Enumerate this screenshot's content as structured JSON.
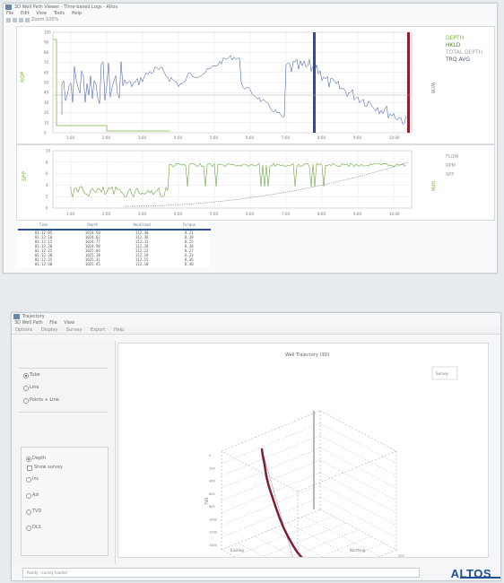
{
  "top_window": {
    "title": "3D Well Path Viewer - Time-based Logs - Altos",
    "menu": [
      "File",
      "Edit",
      "View",
      "Tools",
      "Help"
    ],
    "toolbar_label": "Zoom 100%",
    "upper_chart": {
      "y_ticks": [
        "100",
        "90",
        "80",
        "70",
        "60",
        "50",
        "40",
        "30",
        "20",
        "10",
        "0"
      ],
      "x_ticks": [
        "1:00",
        "2:00",
        "3:00",
        "4:00",
        "5:00",
        "6:00",
        "7:00",
        "8:00",
        "9:00",
        "10:00"
      ],
      "y_label": "ROP",
      "right_label": "WOB",
      "legend": [
        "DEPTH",
        "HKLD",
        "TOTAL DEPTH",
        "TRQ AVG"
      ],
      "legend_colors": [
        "#7ab648",
        "#5a7a3a",
        "#a0a8b0",
        "#556070"
      ]
    },
    "lower_chart": {
      "y_ticks": [
        "10",
        "8",
        "6",
        "4",
        "2",
        "0"
      ],
      "x_ticks": [
        "1:00",
        "2:00",
        "3:00",
        "4:00",
        "5:00",
        "6:00",
        "7:00",
        "8:00",
        "9:00",
        "10:00"
      ],
      "y_label": "SPP",
      "right_label": "RPM",
      "legend": [
        "FLOW",
        "RPM",
        "SPP"
      ]
    },
    "table": {
      "headers": [
        "Time",
        "Depth",
        "Hookload",
        "Torque"
      ],
      "rows": [
        [
          "01:12:05",
          "1024.50",
          "112.40",
          "8.21"
        ],
        [
          "01:12:10",
          "1024.62",
          "112.36",
          "8.19"
        ],
        [
          "01:12:15",
          "1024.77",
          "112.31",
          "8.25"
        ],
        [
          "01:12:20",
          "1024.90",
          "112.28",
          "8.30"
        ],
        [
          "01:12:25",
          "1025.04",
          "112.22",
          "8.27"
        ],
        [
          "01:12:30",
          "1025.18",
          "112.19",
          "8.33"
        ],
        [
          "01:12:35",
          "1025.31",
          "112.15",
          "8.36"
        ],
        [
          "01:12:40",
          "1025.45",
          "112.10",
          "8.40"
        ]
      ]
    }
  },
  "bottom_window": {
    "title": "Trajectory",
    "subtitle": "3D Well Path",
    "menu": [
      "File",
      "View"
    ],
    "tabs": [
      "Options",
      "Display",
      "Survey",
      "Export",
      "Help"
    ],
    "view_options": [
      {
        "label": "Tube",
        "selected": true
      },
      {
        "label": "Line",
        "selected": false
      },
      {
        "label": "Points + Line",
        "selected": false
      }
    ],
    "group_options": [
      {
        "label": "Depth",
        "selected": true
      },
      {
        "label": "Inc",
        "selected": false
      },
      {
        "label": "Azi",
        "selected": false
      },
      {
        "label": "TVD",
        "selected": false
      },
      {
        "label": "DLS",
        "selected": false
      }
    ],
    "group_checkbox": "Show survey",
    "plot_title": "Well Trajectory (3D)",
    "legend_box": "Survey",
    "z_ticks": [
      "0",
      "200",
      "400",
      "600",
      "800",
      "1000",
      "1200",
      "1400"
    ],
    "x_ticks": [
      "-400",
      "-300",
      "-200",
      "-100",
      "0",
      "100",
      "200"
    ],
    "axis_x": "Easting",
    "axis_y": "Northing",
    "axis_z": "TVD",
    "trajectory_color": "#8b1d2c",
    "status": "Ready - survey loaded",
    "brand": "ALTOS"
  }
}
